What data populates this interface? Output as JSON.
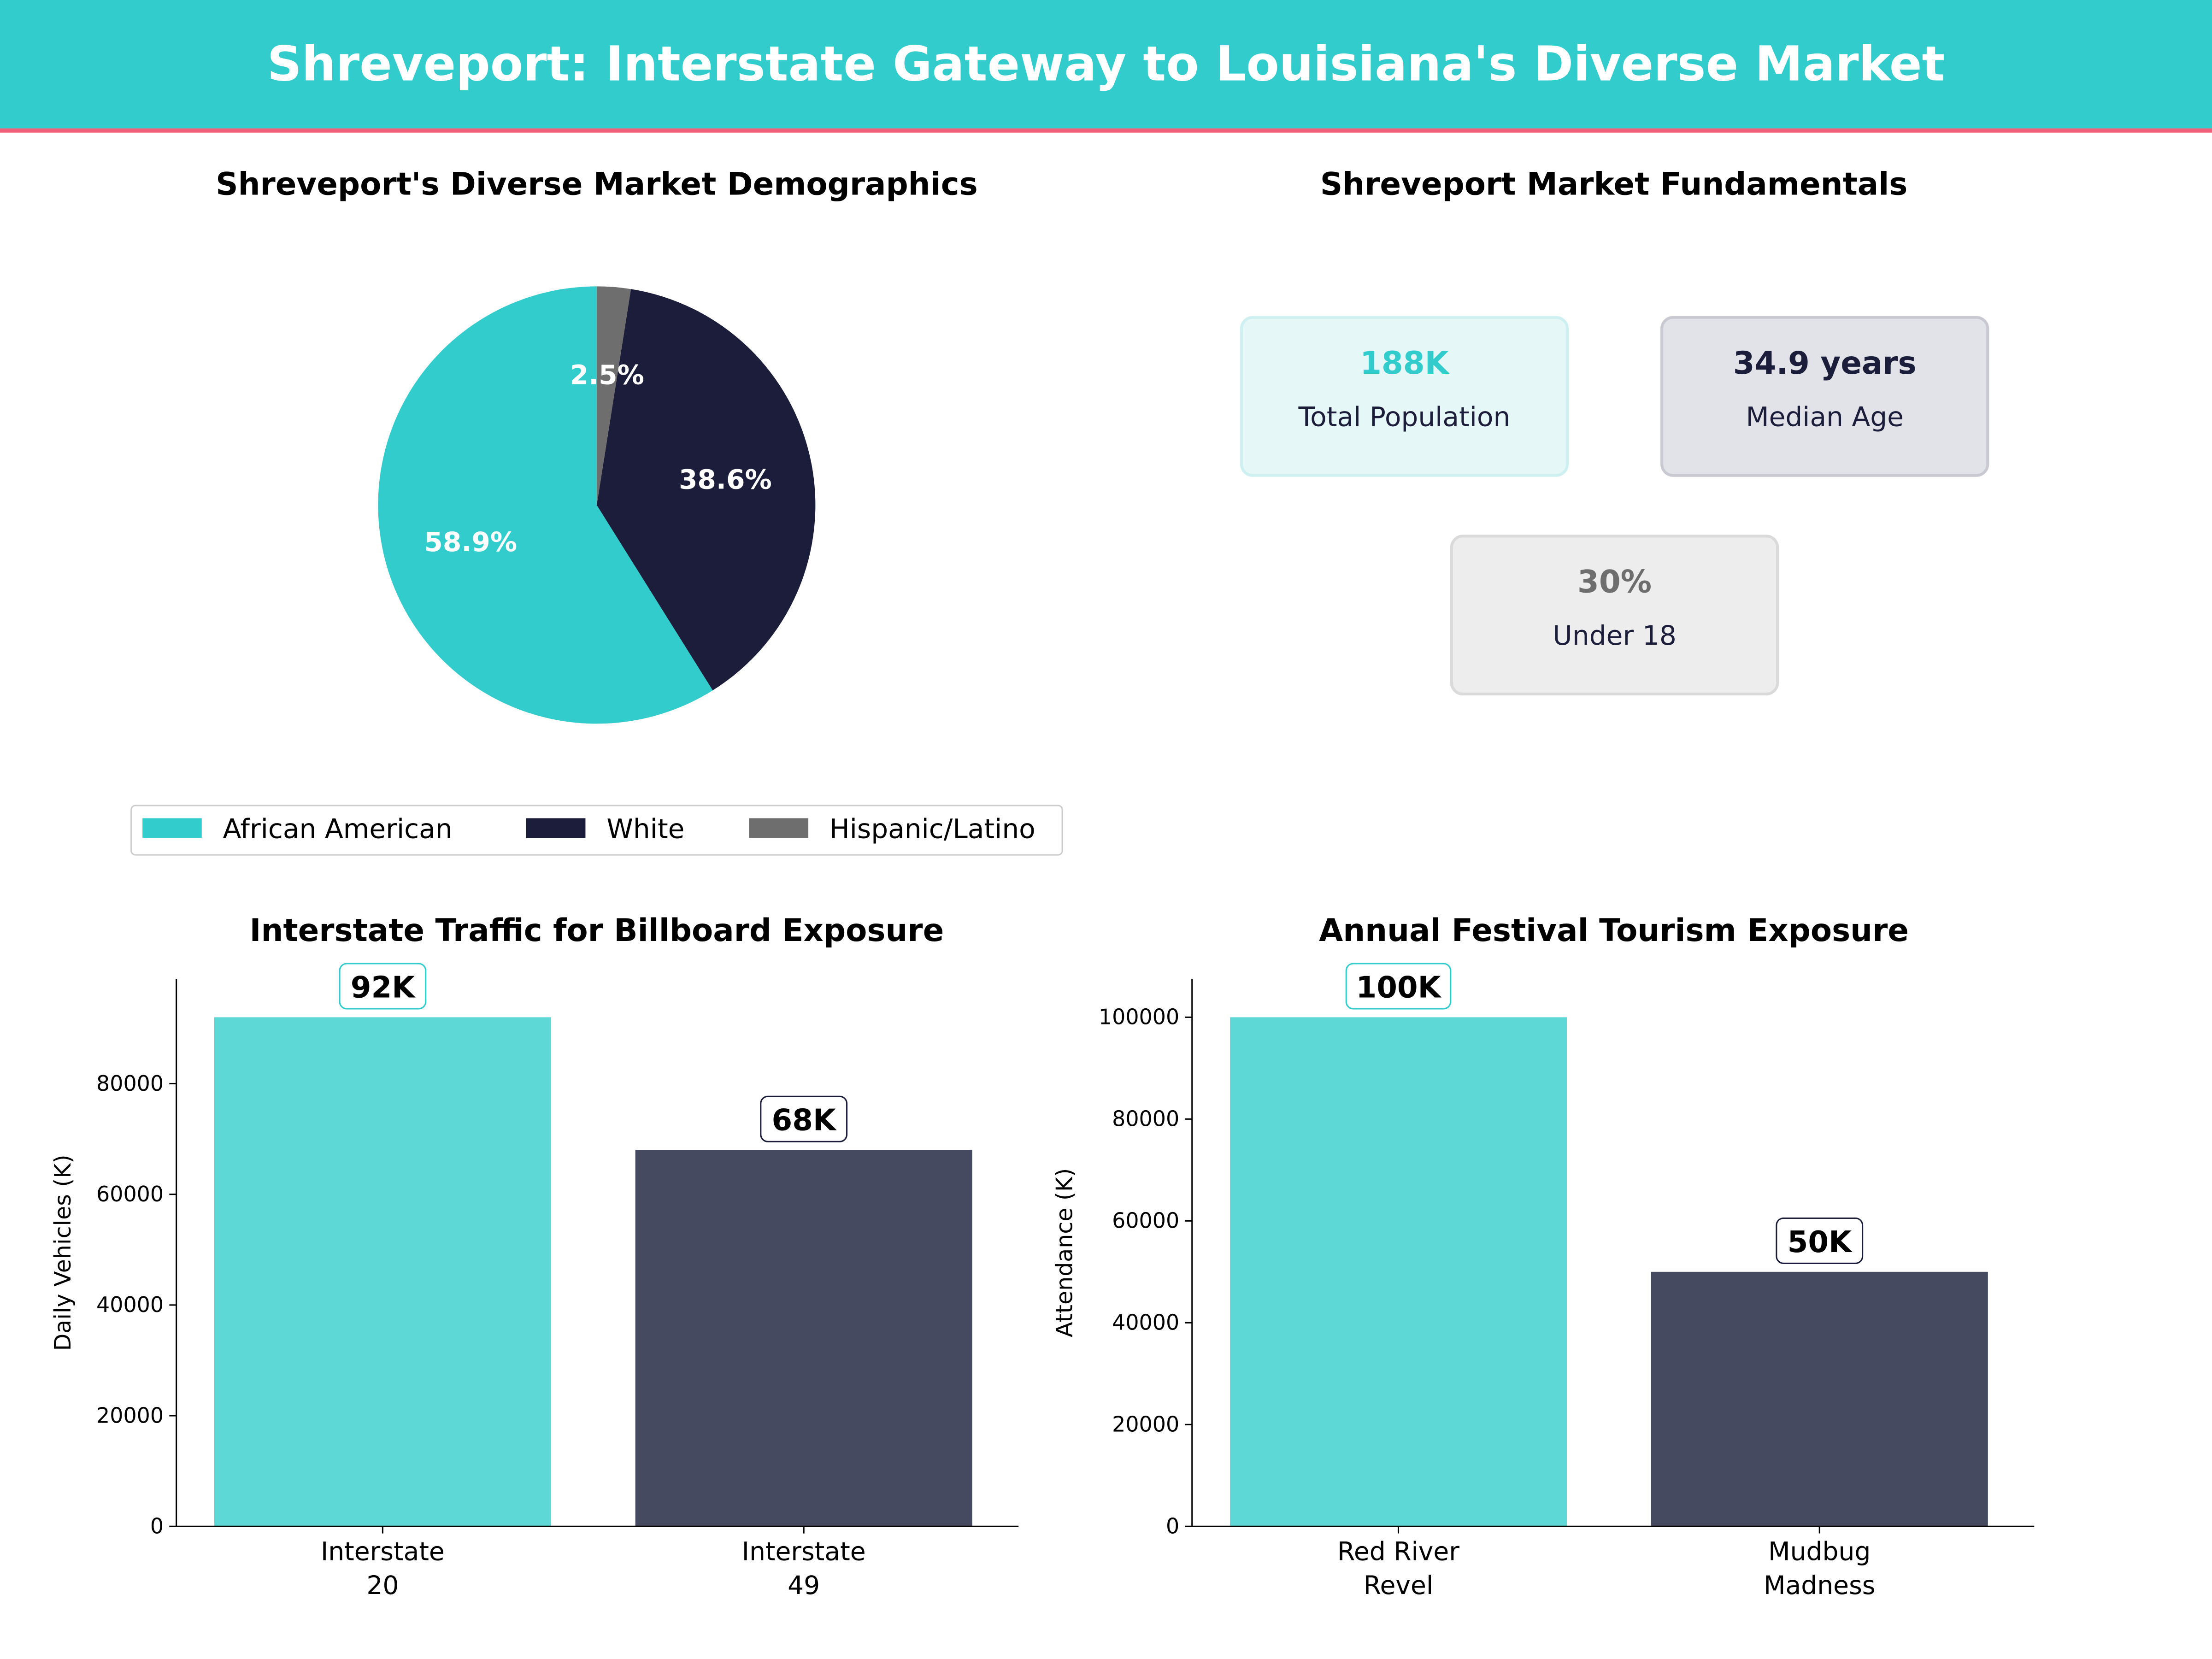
{
  "header": {
    "title": "Shreveport: Interstate Gateway to Louisiana's Diverse Market",
    "bg_color": "#33CCCC",
    "accent_line_color": "#F0607A"
  },
  "colors": {
    "teal": "#33CCCC",
    "navy": "#1B1D3A",
    "gray": "#6E6E6E",
    "teal_bar": "#5ED8D6",
    "navy_bar": "#454A60"
  },
  "chart_data": [
    {
      "type": "pie",
      "title": "Shreveport's Diverse Market Demographics",
      "labels": [
        "African American",
        "White",
        "Hispanic/Latino"
      ],
      "values": [
        58.9,
        38.6,
        2.5
      ],
      "value_labels": [
        "58.9%",
        "38.6%",
        "2.5%"
      ],
      "colors": [
        "#33CCCC",
        "#1B1D3A",
        "#6E6E6E"
      ],
      "start_angle": 90,
      "legend": "bottom"
    },
    {
      "type": "table",
      "title": "Shreveport Market Fundamentals",
      "cards": [
        {
          "value": "188K",
          "label": "Total Population",
          "color": "#33CCCC"
        },
        {
          "value": "34.9 years",
          "label": "Median Age",
          "color": "#1B1D3A"
        },
        {
          "value": "30%",
          "label": "Under 18",
          "color": "#6E6E6E"
        }
      ]
    },
    {
      "type": "bar",
      "title": "Interstate Traffic for Billboard Exposure",
      "categories": [
        "Interstate\n20",
        "Interstate\n49"
      ],
      "values": [
        92000,
        68000
      ],
      "data_labels": [
        "92K",
        "68K"
      ],
      "xlabel": "",
      "ylabel": "Daily Vehicles (K)",
      "ylim": [
        0,
        98900
      ],
      "yticks": [
        0,
        20000,
        40000,
        60000,
        80000
      ]
    },
    {
      "type": "bar",
      "title": "Annual Festival Tourism Exposure",
      "categories": [
        "Red River\nRevel",
        "Mudbug\nMadness"
      ],
      "values": [
        100000,
        50000
      ],
      "data_labels": [
        "100K",
        "50K"
      ],
      "xlabel": "",
      "ylabel": "Attendance (K)",
      "ylim": [
        0,
        107500
      ],
      "yticks": [
        0,
        20000,
        40000,
        60000,
        80000,
        100000
      ]
    }
  ]
}
